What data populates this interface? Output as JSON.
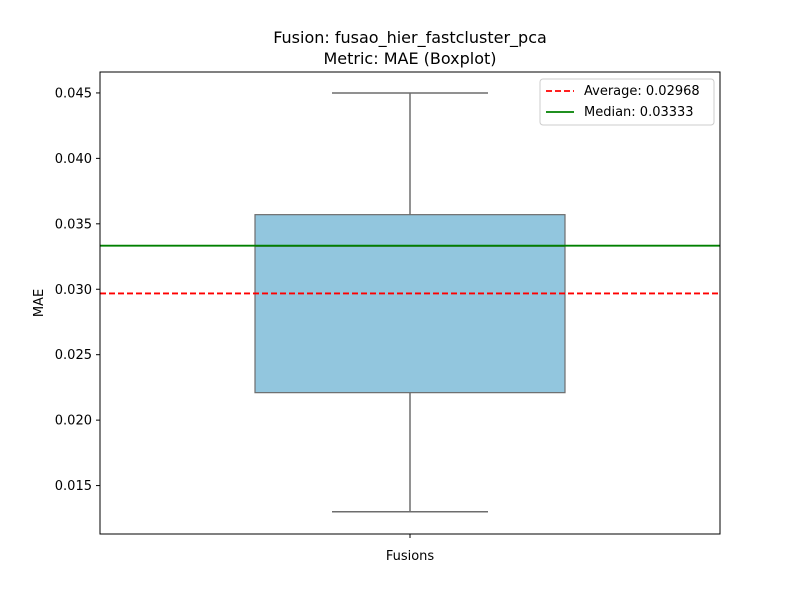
{
  "chart_data": {
    "type": "boxplot",
    "title": "Fusion: fusao_hier_fastcluster_pca",
    "subtitle": "Metric: MAE (Boxplot)",
    "xlabel": "Fusions",
    "ylabel": "MAE",
    "ylim": [
      0.0113,
      0.0466
    ],
    "yticks": [
      "0.015",
      "0.020",
      "0.025",
      "0.030",
      "0.035",
      "0.040",
      "0.045"
    ],
    "ytick_values": [
      0.015,
      0.02,
      0.025,
      0.03,
      0.035,
      0.04,
      0.045
    ],
    "box": {
      "whisker_low": 0.013,
      "q1": 0.0221,
      "median": 0.0333,
      "q3": 0.0357,
      "whisker_high": 0.045,
      "fill": "#92c6de",
      "edge": "#6d6d6d"
    },
    "reference_lines": [
      {
        "label": "Average: 0.02968",
        "value": 0.02968,
        "color": "#ff0000",
        "style": "dashed"
      },
      {
        "label": "Median: 0.03333",
        "value": 0.03333,
        "color": "#008000",
        "style": "solid"
      }
    ],
    "legend_position": "top-right",
    "grid": false
  }
}
